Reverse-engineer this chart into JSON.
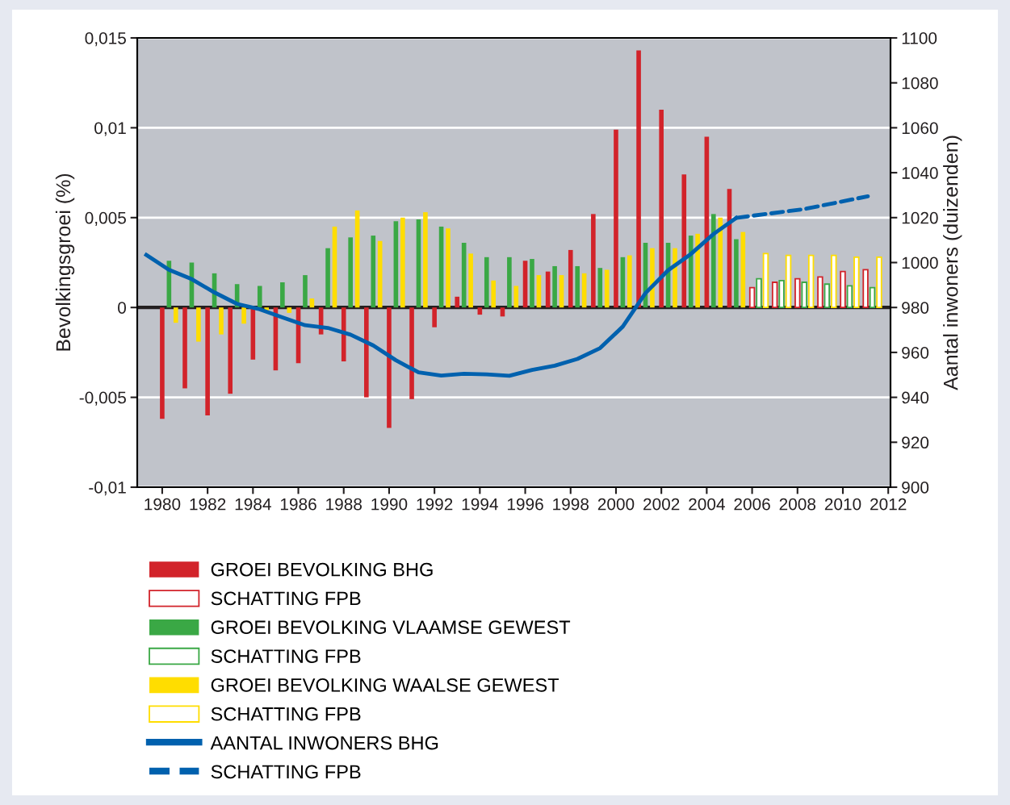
{
  "chart_data": {
    "type": "bar",
    "xlim": [
      1978.9,
      2012.1
    ],
    "xticks": [
      1980,
      1982,
      1984,
      1986,
      1988,
      1990,
      1992,
      1994,
      1996,
      1998,
      2000,
      2002,
      2004,
      2006,
      2008,
      2010,
      2012
    ],
    "ylim": [
      -0.01,
      0.015
    ],
    "yticks": [
      {
        "value": -0.01,
        "label": "-0,01"
      },
      {
        "value": -0.005,
        "label": "-0,005"
      },
      {
        "value": 0,
        "label": "0"
      },
      {
        "value": 0.005,
        "label": "0,005"
      },
      {
        "value": 0.01,
        "label": "0,01"
      },
      {
        "value": 0.015,
        "label": "0,015"
      }
    ],
    "y2lim": [
      900,
      1100
    ],
    "y2ticks": [
      900,
      920,
      940,
      960,
      980,
      1000,
      1020,
      1040,
      1060,
      1080,
      1100
    ],
    "ylabel": "Bevolkingsgroei (%)",
    "y2label": "Aantal inwoners (duizenden)",
    "grid": "y",
    "legend": "bottom",
    "ref_lines": [
      {
        "axis": "y",
        "value": 0,
        "color": "#231f20"
      }
    ],
    "series": [
      {
        "name": "GROEI BEVOLKING BHG",
        "color": "#d2232a",
        "x": [
          1980,
          1981,
          1982,
          1983,
          1984,
          1985,
          1986,
          1987,
          1988,
          1989,
          1990,
          1991,
          1992,
          1993,
          1994,
          1995,
          1996,
          1997,
          1998,
          1999,
          2000,
          2001,
          2002,
          2003,
          2004,
          2005
        ],
        "values": [
          -0.0062,
          -0.0045,
          -0.006,
          -0.0048,
          -0.0029,
          -0.0035,
          -0.0031,
          -0.0015,
          -0.003,
          -0.005,
          -0.0067,
          -0.0051,
          -0.0011,
          0.0006,
          -0.0004,
          -0.0005,
          0.0026,
          0.002,
          0.0032,
          0.0052,
          0.0099,
          0.0143,
          0.011,
          0.0074,
          0.0095,
          0.0066
        ]
      },
      {
        "name": "SCHATTING FPB",
        "color": "#d2232a",
        "x": [
          2006,
          2007,
          2008,
          2009,
          2010,
          2011
        ],
        "values": [
          0.0011,
          0.0014,
          0.0016,
          0.0017,
          0.002,
          0.0021
        ]
      },
      {
        "name": "GROEI BEVOLKING VLAAMSE GEWEST",
        "color": "#3aa845",
        "x": [
          1980.3,
          1981.3,
          1982.3,
          1983.3,
          1984.3,
          1985.3,
          1986.3,
          1987.3,
          1988.3,
          1989.3,
          1990.3,
          1991.3,
          1992.3,
          1993.3,
          1994.3,
          1995.3,
          1996.3,
          1997.3,
          1998.3,
          1999.3,
          2000.3,
          2001.3,
          2002.3,
          2003.3,
          2004.3,
          2005.3
        ],
        "values": [
          0.0026,
          0.0025,
          0.0019,
          0.0013,
          0.0012,
          0.0014,
          0.0018,
          0.0033,
          0.0039,
          0.004,
          0.0048,
          0.0049,
          0.0045,
          0.0036,
          0.0028,
          0.0028,
          0.0027,
          0.0023,
          0.0023,
          0.0022,
          0.0028,
          0.0036,
          0.0036,
          0.004,
          0.0052,
          0.0038
        ]
      },
      {
        "name": "SCHATTING FPB",
        "color": "#3aa845",
        "x": [
          2006.3,
          2007.3,
          2008.3,
          2009.3,
          2010.3,
          2011.3
        ],
        "values": [
          0.0016,
          0.0015,
          0.0014,
          0.0013,
          0.0012,
          0.0011
        ]
      },
      {
        "name": "GROEI BEVOLKING WAALSE GEWEST",
        "color": "#ffdd00",
        "x": [
          1980.6,
          1981.6,
          1982.6,
          1983.6,
          1984.6,
          1985.6,
          1986.6,
          1987.6,
          1988.6,
          1989.6,
          1990.6,
          1991.6,
          1992.6,
          1993.6,
          1994.6,
          1995.6,
          1996.6,
          1997.6,
          1998.6,
          1999.6,
          2000.6,
          2001.6,
          2002.6,
          2003.6,
          2004.6,
          2005.6
        ],
        "values": [
          -0.00085,
          -0.0019,
          -0.0015,
          -0.0009,
          -0.0002,
          -0.0003,
          0.0005,
          0.0045,
          0.0054,
          0.0037,
          0.005,
          0.0053,
          0.0044,
          0.003,
          0.0015,
          0.0012,
          0.0018,
          0.0018,
          0.0019,
          0.0021,
          0.0029,
          0.0033,
          0.0033,
          0.0041,
          0.005,
          0.0042
        ]
      },
      {
        "name": "SCHATTING FPB",
        "color": "#ffdd00",
        "x": [
          2006.6,
          2007.6,
          2008.6,
          2009.6,
          2010.6,
          2011.6
        ],
        "values": [
          0.003,
          0.0029,
          0.0029,
          0.0029,
          0.0028,
          0.0028
        ]
      },
      {
        "name": "AANTAL INWONERS BHG",
        "type": "line",
        "axis": "y2",
        "color": "#0061ae",
        "line_style": "solid",
        "x": [
          1979.3,
          1980.3,
          1981.3,
          1982.3,
          1983.3,
          1984.3,
          1985.3,
          1986.3,
          1987.3,
          1988.3,
          1989.3,
          1990.3,
          1991.3,
          1992.3,
          1993.3,
          1994.3,
          1995.3,
          1996.3,
          1997.3,
          1998.3,
          1999.3,
          2000.3,
          2001.3,
          2002.3,
          2003.3,
          2004.3,
          2005.3
        ],
        "values": [
          1003.4,
          996.8,
          992.6,
          986.7,
          981.6,
          979.2,
          975.6,
          972.1,
          970.9,
          967.9,
          963.1,
          956.5,
          951.1,
          949.7,
          950.5,
          950.2,
          949.6,
          952.2,
          954.1,
          957.1,
          961.9,
          971.5,
          986.4,
          996.6,
          1003.8,
          1012.7,
          1019.9
        ]
      },
      {
        "name": "SCHATTING FPB",
        "type": "line",
        "axis": "y2",
        "color": "#0061ae",
        "line_style": "dashed",
        "x": [
          2005.3,
          2008.3,
          2011.1
        ],
        "values": [
          1019.9,
          1023.8,
          1029.5
        ]
      }
    ]
  }
}
